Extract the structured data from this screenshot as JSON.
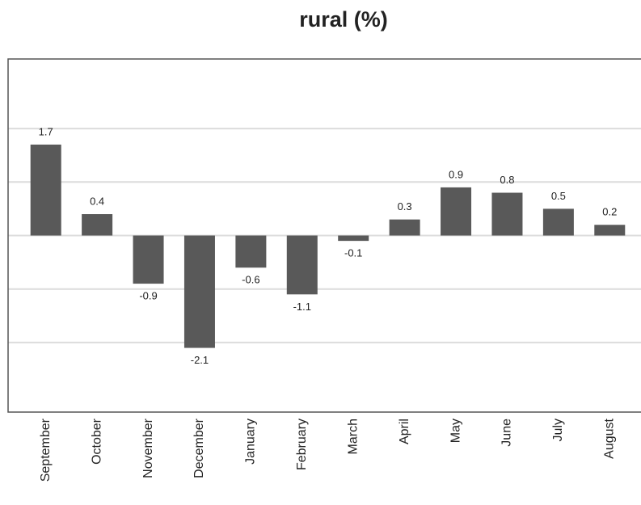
{
  "chart_data": {
    "type": "bar",
    "title": "rural (%)",
    "categories": [
      "September",
      "October",
      "November",
      "December",
      "January",
      "February",
      "March",
      "April",
      "May",
      "June",
      "July",
      "August"
    ],
    "values": [
      1.7,
      0.4,
      -0.9,
      -2.1,
      -0.6,
      -1.1,
      -0.1,
      0.3,
      0.9,
      0.8,
      0.5,
      0.2
    ],
    "color": "#595959",
    "ylim": [
      -3.3,
      3.3
    ],
    "yticks": [
      -2,
      -1,
      0,
      1,
      2
    ],
    "grid": true
  }
}
